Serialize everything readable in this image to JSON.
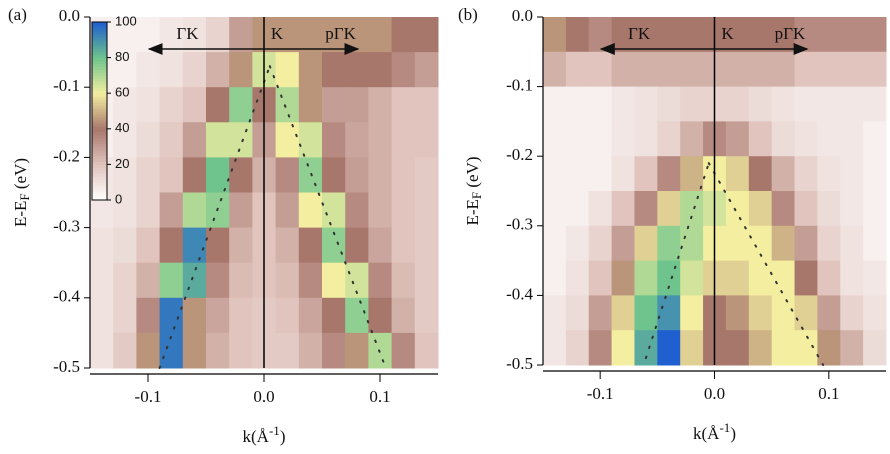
{
  "chart_data": [
    {
      "type": "heatmap",
      "panel": "(a)",
      "ylabel": [
        "E-E",
        "F",
        " (eV)"
      ],
      "xlabel": [
        "k(Å",
        "-1",
        ")"
      ],
      "annotations": [
        "ΓK",
        "K",
        "pΓK"
      ],
      "x": [
        -0.14,
        -0.12,
        -0.1,
        -0.08,
        -0.06,
        -0.04,
        -0.02,
        0,
        0.02,
        0.04,
        0.06,
        0.08,
        0.1,
        0.12,
        0.14
      ],
      "y": [
        -0.025,
        -0.075,
        -0.125,
        -0.175,
        -0.225,
        -0.275,
        -0.325,
        -0.375,
        -0.425,
        -0.475
      ],
      "z": [
        [
          5,
          5,
          5,
          8,
          10,
          15,
          30,
          45,
          45,
          45,
          45,
          45,
          45,
          40,
          40
        ],
        [
          5,
          5,
          8,
          10,
          15,
          25,
          45,
          65,
          60,
          45,
          40,
          40,
          40,
          35,
          30
        ],
        [
          5,
          8,
          10,
          15,
          20,
          40,
          75,
          40,
          70,
          45,
          30,
          30,
          25,
          20,
          20
        ],
        [
          5,
          8,
          12,
          18,
          30,
          65,
          65,
          30,
          60,
          65,
          35,
          28,
          25,
          20,
          20
        ],
        [
          8,
          10,
          15,
          20,
          40,
          80,
          40,
          25,
          35,
          75,
          40,
          30,
          25,
          20,
          18
        ],
        [
          8,
          10,
          15,
          30,
          70,
          75,
          30,
          20,
          30,
          60,
          65,
          35,
          25,
          20,
          18
        ],
        [
          10,
          12,
          20,
          40,
          92,
          40,
          25,
          20,
          25,
          40,
          75,
          40,
          28,
          20,
          18
        ],
        [
          10,
          15,
          25,
          75,
          85,
          35,
          22,
          20,
          22,
          35,
          60,
          65,
          35,
          22,
          18
        ],
        [
          10,
          15,
          35,
          95,
          45,
          28,
          20,
          18,
          20,
          28,
          40,
          75,
          40,
          25,
          18
        ],
        [
          10,
          18,
          45,
          95,
          45,
          25,
          20,
          18,
          18,
          25,
          35,
          45,
          70,
          35,
          20
        ]
      ],
      "dispersion": [
        {
          "x": [
            -0.09,
            0.005
          ],
          "y": [
            -0.5,
            -0.07
          ]
        },
        {
          "x": [
            0.005,
            0.105
          ],
          "y": [
            -0.07,
            -0.5
          ]
        }
      ],
      "vline": 0,
      "xlim": [
        -0.15,
        0.15
      ],
      "ylim": [
        -0.5,
        0.0
      ],
      "xticks": [
        -0.1,
        {
          "value": 0,
          "label": "0.0"
        },
        0.1
      ],
      "yticks": [
        {
          "value": 0,
          "label": "0.0"
        },
        -0.1,
        -0.2,
        -0.3,
        -0.4,
        -0.5
      ],
      "colorbar": {
        "ticks": [
          0,
          20,
          40,
          60,
          80,
          100
        ],
        "colors": [
          "#ffffff",
          "#e0c4bd",
          "#a8776c",
          "#f3eea0",
          "#6ec48c",
          "#1f5fcf"
        ]
      }
    },
    {
      "type": "heatmap",
      "panel": "(b)",
      "ylabel": [
        "E-E",
        "F",
        " (eV)"
      ],
      "xlabel": [
        "k(Å",
        "-1",
        ")"
      ],
      "annotations": [
        "ΓK",
        "K",
        "pΓK"
      ],
      "x": [
        -0.14,
        -0.12,
        -0.1,
        -0.08,
        -0.06,
        -0.04,
        -0.02,
        0,
        0.02,
        0.04,
        0.06,
        0.08,
        0.1,
        0.12,
        0.14
      ],
      "y": [
        -0.025,
        -0.075,
        -0.125,
        -0.175,
        -0.225,
        -0.275,
        -0.325,
        -0.375,
        -0.425,
        -0.475
      ],
      "z": [
        [
          45,
          40,
          35,
          40,
          40,
          40,
          40,
          40,
          40,
          40,
          40,
          35,
          35,
          35,
          35
        ],
        [
          25,
          20,
          20,
          25,
          25,
          25,
          25,
          25,
          25,
          25,
          25,
          20,
          20,
          20,
          20
        ],
        [
          5,
          5,
          5,
          8,
          10,
          12,
          15,
          15,
          15,
          12,
          10,
          8,
          8,
          8,
          8
        ],
        [
          5,
          5,
          5,
          8,
          10,
          15,
          25,
          35,
          30,
          20,
          12,
          10,
          8,
          8,
          5
        ],
        [
          5,
          5,
          5,
          10,
          20,
          35,
          50,
          60,
          55,
          40,
          25,
          15,
          10,
          8,
          5
        ],
        [
          5,
          5,
          10,
          20,
          35,
          55,
          70,
          65,
          60,
          55,
          35,
          20,
          12,
          8,
          5
        ],
        [
          5,
          8,
          15,
          30,
          55,
          75,
          70,
          60,
          60,
          60,
          50,
          30,
          15,
          10,
          5
        ],
        [
          5,
          10,
          20,
          45,
          70,
          80,
          65,
          55,
          55,
          60,
          60,
          40,
          20,
          10,
          8
        ],
        [
          8,
          12,
          30,
          55,
          80,
          90,
          60,
          40,
          45,
          55,
          60,
          55,
          30,
          15,
          10
        ],
        [
          8,
          15,
          35,
          60,
          85,
          100,
          55,
          40,
          40,
          50,
          60,
          60,
          45,
          25,
          12
        ]
      ],
      "dispersion": [
        {
          "x": [
            -0.06,
            -0.005
          ],
          "y": [
            -0.49,
            -0.21
          ]
        },
        {
          "x": [
            -0.005,
            0.095
          ],
          "y": [
            -0.21,
            -0.5
          ]
        }
      ],
      "vline": 0,
      "xlim": [
        -0.15,
        0.15
      ],
      "ylim": [
        -0.5,
        0.0
      ],
      "xticks": [
        -0.1,
        {
          "value": 0,
          "label": "0.0"
        },
        0.1
      ],
      "yticks": [
        {
          "value": 0,
          "label": "0.0"
        },
        -0.1,
        -0.2,
        -0.3,
        -0.4,
        -0.5
      ]
    }
  ]
}
